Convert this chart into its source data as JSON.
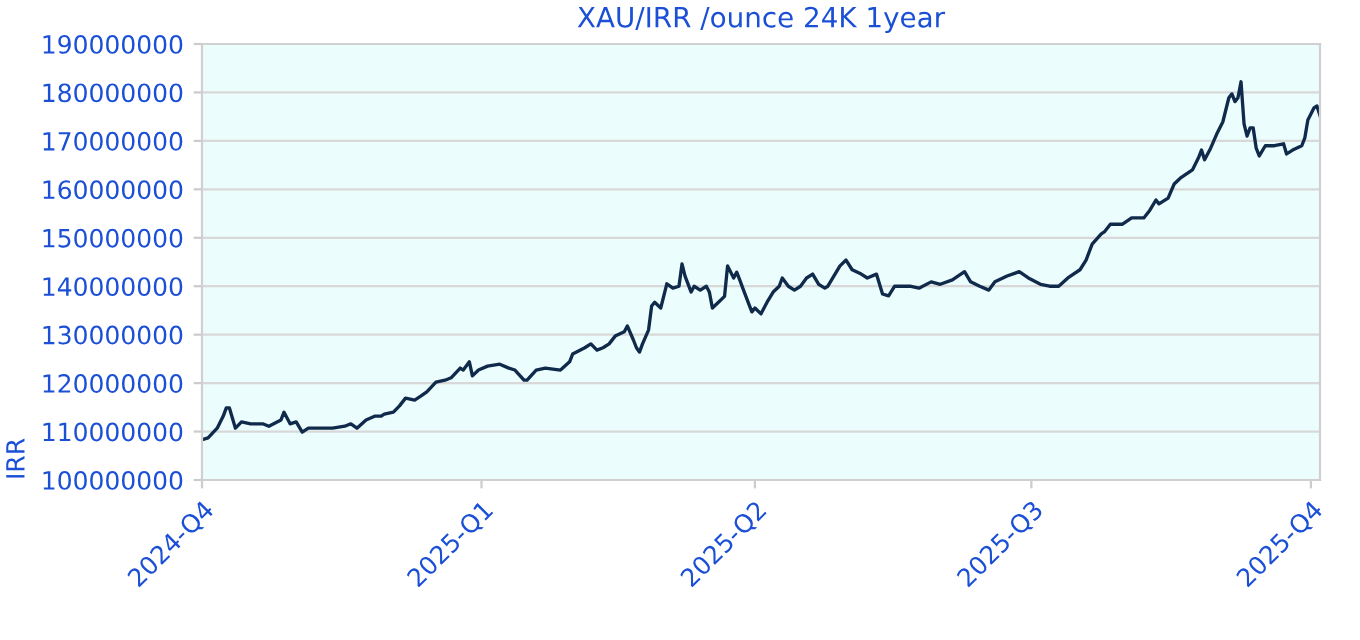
{
  "chart_data": {
    "type": "line",
    "title": "XAU/IRR /ounce 24K 1year",
    "ylabel": "IRR",
    "x": [
      "2024-10-01",
      "2024-10-03",
      "2024-10-06",
      "2024-10-08",
      "2024-10-09",
      "2024-10-10",
      "2024-10-12",
      "2024-10-14",
      "2024-10-17",
      "2024-10-21",
      "2024-10-23",
      "2024-10-27",
      "2024-10-28",
      "2024-10-30",
      "2024-11-01",
      "2024-11-03",
      "2024-11-05",
      "2024-11-09",
      "2024-11-13",
      "2024-11-17",
      "2024-11-19",
      "2024-11-21",
      "2024-11-24",
      "2024-11-27",
      "2024-11-29",
      "2024-11-30",
      "2024-12-03",
      "2024-12-05",
      "2024-12-07",
      "2024-12-10",
      "2024-12-12",
      "2024-12-14",
      "2024-12-17",
      "2024-12-20",
      "2024-12-22",
      "2024-12-25",
      "2024-12-26",
      "2024-12-28",
      "2024-12-29",
      "2024-12-31",
      "2025-01-03",
      "2025-01-07",
      "2025-01-10",
      "2025-01-12",
      "2025-01-15",
      "2025-01-16",
      "2025-01-19",
      "2025-01-22",
      "2025-01-27",
      "2025-01-30",
      "2025-01-31",
      "2025-02-04",
      "2025-02-06",
      "2025-02-08",
      "2025-02-10",
      "2025-02-12",
      "2025-02-14",
      "2025-02-17",
      "2025-02-18",
      "2025-02-20",
      "2025-02-21",
      "2025-02-22",
      "2025-02-23",
      "2025-02-25",
      "2025-02-26",
      "2025-02-27",
      "2025-03-01",
      "2025-03-03",
      "2025-03-05",
      "2025-03-07",
      "2025-03-08",
      "2025-03-09",
      "2025-03-11",
      "2025-03-12",
      "2025-03-14",
      "2025-03-16",
      "2025-03-17",
      "2025-03-18",
      "2025-03-20",
      "2025-03-22",
      "2025-03-23",
      "2025-03-25",
      "2025-03-26",
      "2025-03-27",
      "2025-03-28",
      "2025-03-30",
      "2025-03-31",
      "2025-04-01",
      "2025-04-03",
      "2025-04-05",
      "2025-04-07",
      "2025-04-09",
      "2025-04-10",
      "2025-04-12",
      "2025-04-14",
      "2025-04-16",
      "2025-04-18",
      "2025-04-20",
      "2025-04-22",
      "2025-04-24",
      "2025-04-25",
      "2025-04-29",
      "2025-05-01",
      "2025-05-03",
      "2025-05-06",
      "2025-05-08",
      "2025-05-11",
      "2025-05-13",
      "2025-05-15",
      "2025-05-17",
      "2025-05-22",
      "2025-05-25",
      "2025-05-29",
      "2025-06-01",
      "2025-06-05",
      "2025-06-09",
      "2025-06-11",
      "2025-06-14",
      "2025-06-17",
      "2025-06-19",
      "2025-06-23",
      "2025-06-27",
      "2025-06-30",
      "2025-07-04",
      "2025-07-07",
      "2025-07-10",
      "2025-07-13",
      "2025-07-17",
      "2025-07-19",
      "2025-07-21",
      "2025-07-24",
      "2025-07-25",
      "2025-07-27",
      "2025-07-31",
      "2025-08-03",
      "2025-08-07",
      "2025-08-09",
      "2025-08-11",
      "2025-08-12",
      "2025-08-15",
      "2025-08-17",
      "2025-08-19",
      "2025-08-23",
      "2025-08-25",
      "2025-08-26",
      "2025-08-27",
      "2025-08-29",
      "2025-08-31",
      "2025-09-02",
      "2025-09-04",
      "2025-09-05",
      "2025-09-06",
      "2025-09-07",
      "2025-09-08",
      "2025-09-09",
      "2025-09-10",
      "2025-09-11",
      "2025-09-12",
      "2025-09-13",
      "2025-09-14",
      "2025-09-16",
      "2025-09-19",
      "2025-09-22",
      "2025-09-23",
      "2025-09-25",
      "2025-09-28",
      "2025-09-29",
      "2025-09-30",
      "2025-10-02",
      "2025-10-03",
      "2025-10-04"
    ],
    "series": [
      {
        "color": "#0f2a4a",
        "values": [
          108300000,
          108700000,
          110700000,
          113200000,
          114900000,
          114900000,
          110700000,
          112000000,
          111600000,
          111600000,
          111100000,
          112400000,
          114000000,
          111600000,
          112000000,
          109900000,
          110700000,
          110700000,
          110700000,
          111100000,
          111600000,
          110700000,
          112400000,
          113200000,
          113200000,
          113600000,
          114000000,
          115300000,
          116900000,
          116500000,
          117300000,
          118200000,
          120200000,
          120600000,
          121100000,
          123100000,
          122700000,
          124400000,
          121500000,
          122700000,
          123500000,
          123900000,
          123100000,
          122700000,
          120600000,
          120600000,
          122700000,
          123100000,
          122700000,
          124400000,
          126000000,
          127300000,
          128100000,
          126800000,
          127300000,
          128100000,
          129700000,
          130600000,
          131800000,
          128900000,
          127300000,
          126400000,
          128100000,
          131000000,
          135900000,
          136700000,
          135500000,
          140500000,
          139600000,
          140000000,
          144600000,
          142100000,
          138800000,
          140000000,
          139200000,
          140000000,
          138800000,
          135500000,
          136700000,
          137900000,
          144200000,
          141700000,
          142900000,
          141300000,
          139600000,
          136300000,
          134700000,
          135500000,
          134300000,
          136700000,
          138800000,
          140000000,
          141700000,
          140000000,
          139200000,
          140000000,
          141700000,
          142500000,
          140400000,
          139600000,
          140000000,
          144200000,
          145400000,
          143400000,
          142500000,
          141700000,
          142500000,
          138400000,
          138000000,
          140000000,
          140000000,
          139600000,
          140900000,
          140400000,
          141300000,
          143000000,
          140900000,
          140000000,
          139200000,
          140900000,
          142100000,
          143000000,
          141700000,
          140400000,
          140000000,
          140000000,
          141700000,
          143400000,
          145400000,
          148700000,
          150800000,
          151200000,
          152800000,
          152800000,
          154100000,
          154100000,
          155700000,
          157800000,
          157000000,
          158200000,
          161100000,
          162300000,
          164000000,
          166500000,
          168100000,
          166100000,
          168500000,
          171400000,
          173900000,
          178900000,
          179700000,
          178100000,
          178900000,
          182200000,
          173500000,
          171000000,
          172700000,
          172700000,
          168500000,
          166900000,
          169000000,
          169000000,
          169400000,
          167300000,
          168100000,
          169000000,
          170600000,
          174300000,
          176800000,
          177200000,
          175200000
        ]
      }
    ],
    "xlim": [
      "2024-10-01",
      "2025-10-04"
    ],
    "xticks": [
      {
        "value": "2024-10-01",
        "label": "2024-Q4"
      },
      {
        "value": "2025-01-01",
        "label": "2025-Q1"
      },
      {
        "value": "2025-04-01",
        "label": "2025-Q2"
      },
      {
        "value": "2025-07-01",
        "label": "2025-Q3"
      },
      {
        "value": "2025-10-01",
        "label": "2025-Q4"
      }
    ],
    "ylim": [
      100000000,
      190000000
    ],
    "yticks": [
      100000000,
      110000000,
      120000000,
      130000000,
      140000000,
      150000000,
      160000000,
      170000000,
      180000000,
      190000000
    ],
    "grid": "y",
    "marker": "none",
    "line_style": "solid"
  }
}
